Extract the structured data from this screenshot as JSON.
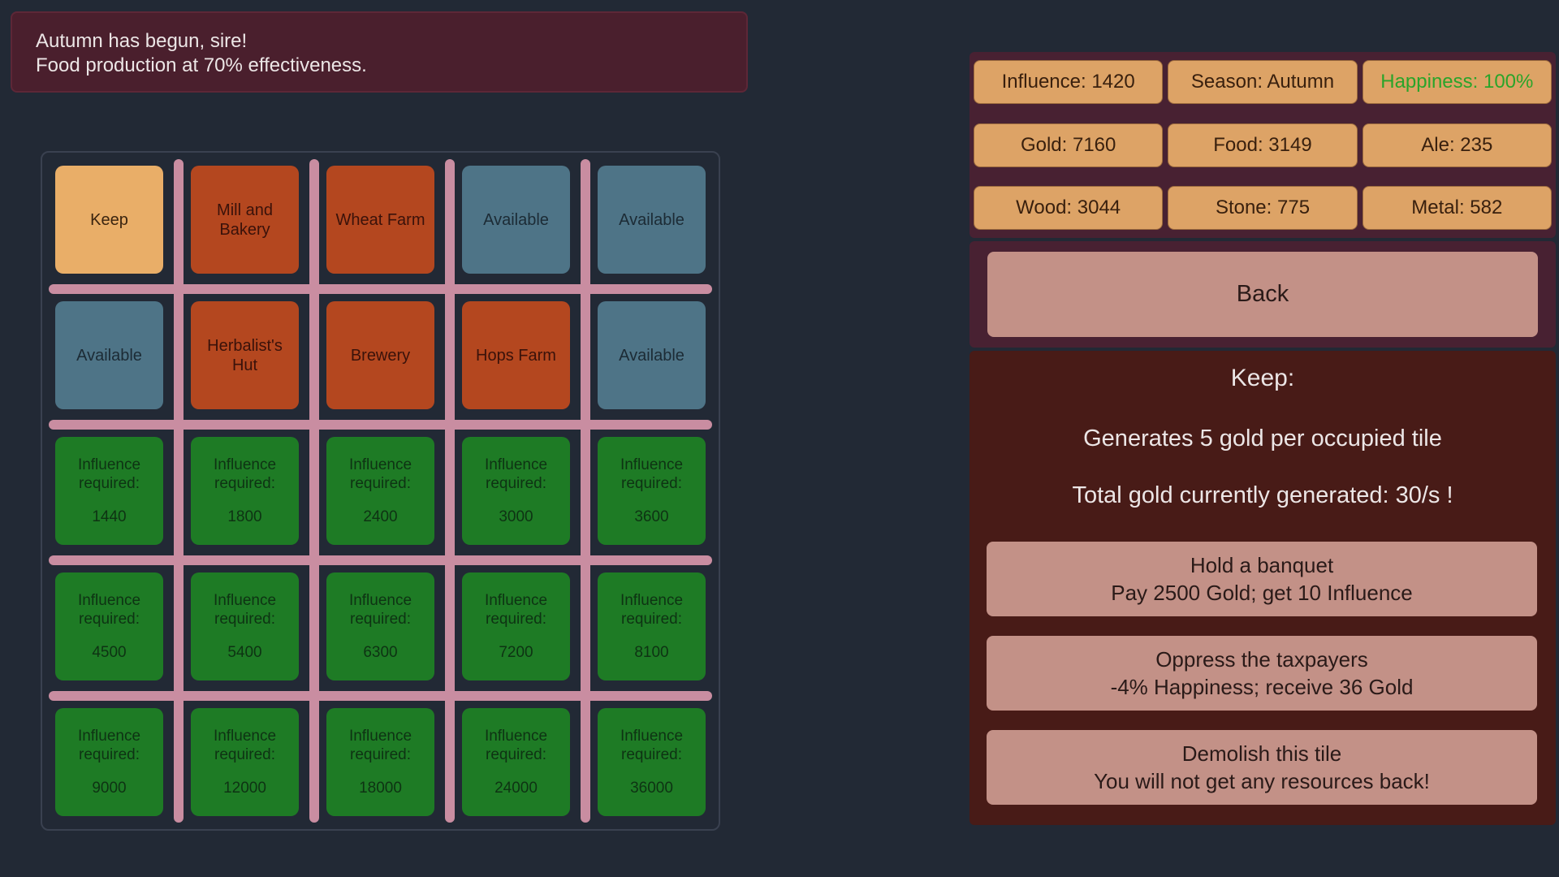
{
  "notification": {
    "line1": "Autumn has begun, sire!",
    "line2": "Food production at 70% effectiveness."
  },
  "hud": {
    "rows": [
      [
        {
          "label": "Influence: 1420"
        },
        {
          "label": "Season: Autumn"
        },
        {
          "label": "Happiness: 100%",
          "highlight": true
        }
      ],
      [
        {
          "label": "Gold: 7160"
        },
        {
          "label": "Food: 3149"
        },
        {
          "label": "Ale: 235"
        }
      ],
      [
        {
          "label": "Wood: 3044"
        },
        {
          "label": "Stone: 775"
        },
        {
          "label": "Metal: 582"
        }
      ]
    ]
  },
  "grid": {
    "tiles": [
      {
        "label": "Keep",
        "type": "keep"
      },
      {
        "label": "Mill and Bakery",
        "type": "building"
      },
      {
        "label": "Wheat Farm",
        "type": "building"
      },
      {
        "label": "Available",
        "type": "available"
      },
      {
        "label": "Available",
        "type": "available"
      },
      {
        "label": "Available",
        "type": "available"
      },
      {
        "label": "Herbalist's Hut",
        "type": "building"
      },
      {
        "label": "Brewery",
        "type": "building"
      },
      {
        "label": "Hops Farm",
        "type": "building"
      },
      {
        "label": "Available",
        "type": "available"
      },
      {
        "label": "Influence required:",
        "value": "1440",
        "type": "locked"
      },
      {
        "label": "Influence required:",
        "value": "1800",
        "type": "locked"
      },
      {
        "label": "Influence required:",
        "value": "2400",
        "type": "locked"
      },
      {
        "label": "Influence required:",
        "value": "3000",
        "type": "locked"
      },
      {
        "label": "Influence required:",
        "value": "3600",
        "type": "locked"
      },
      {
        "label": "Influence required:",
        "value": "4500",
        "type": "locked"
      },
      {
        "label": "Influence required:",
        "value": "5400",
        "type": "locked"
      },
      {
        "label": "Influence required:",
        "value": "6300",
        "type": "locked"
      },
      {
        "label": "Influence required:",
        "value": "7200",
        "type": "locked"
      },
      {
        "label": "Influence required:",
        "value": "8100",
        "type": "locked"
      },
      {
        "label": "Influence required:",
        "value": "9000",
        "type": "locked"
      },
      {
        "label": "Influence required:",
        "value": "12000",
        "type": "locked"
      },
      {
        "label": "Influence required:",
        "value": "18000",
        "type": "locked"
      },
      {
        "label": "Influence required:",
        "value": "24000",
        "type": "locked"
      },
      {
        "label": "Influence required:",
        "value": "36000",
        "type": "locked"
      }
    ]
  },
  "panel": {
    "back_label": "Back",
    "info": {
      "title": "Keep:",
      "line1": "Generates 5 gold per occupied tile",
      "line2": "Total gold currently generated: 30/s !"
    },
    "actions": [
      {
        "line1": "Hold a banquet",
        "line2": "Pay 2500 Gold; get 10 Influence"
      },
      {
        "line1": "Oppress the taxpayers",
        "line2": "-4% Happiness; receive 36 Gold"
      },
      {
        "line1": "Demolish this tile",
        "line2": "You will not get any resources back!"
      }
    ]
  },
  "colors": {
    "page_bg": "#222935",
    "banner_bg": "#4a1f2d",
    "banner_border": "#5d2737",
    "panel_maroon": "#482132",
    "panel_brick": "#481b17",
    "chip_bg": "#dda366",
    "chip_text": "#39200e",
    "happiness_green": "#2aa42a",
    "button_bg": "#c39187",
    "button_text": "#2a1a18",
    "tile_keep": "#e9ae68",
    "tile_building": "#b4471f",
    "tile_available": "#4e7487",
    "tile_locked": "#1e7b25",
    "grid_line": "#c98da1",
    "white_text": "#ece6e6"
  }
}
